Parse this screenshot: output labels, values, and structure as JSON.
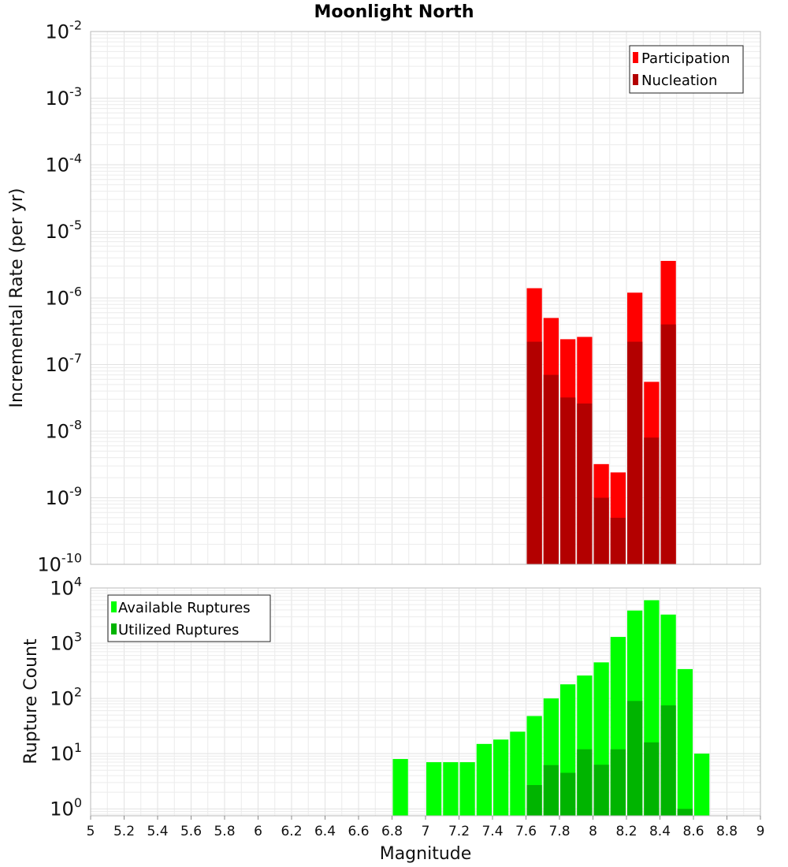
{
  "title": "Moonlight North",
  "colors": {
    "participation": "#ff0000",
    "nucleation": "#b30000",
    "available": "#00ff00",
    "utilized": "#00b400"
  },
  "chart_data": [
    {
      "type": "bar",
      "name": "rate-panel",
      "ylabel": "Incremental Rate (per yr)",
      "xlabel": "",
      "xlim": [
        5,
        9
      ],
      "ylim": [
        1e-10,
        0.01
      ],
      "yscale": "log",
      "y_tick_exponents": [
        -10,
        -9,
        -8,
        -7,
        -6,
        -5,
        -4,
        -3,
        -2
      ],
      "grid": true,
      "legend": {
        "placement": "top-right",
        "entries": [
          "Participation",
          "Nucleation"
        ]
      },
      "bin_width": 0.1,
      "x": [
        7.65,
        7.75,
        7.85,
        7.95,
        8.05,
        8.15,
        8.25,
        8.35,
        8.45
      ],
      "series": [
        {
          "name": "Participation",
          "values": [
            1.4e-06,
            5e-07,
            2.4e-07,
            2.6e-07,
            3.2e-09,
            2.4e-09,
            1.2e-06,
            5.5e-08,
            3.6e-06
          ]
        },
        {
          "name": "Nucleation",
          "values": [
            2.2e-07,
            7e-08,
            3.2e-08,
            2.6e-08,
            1e-09,
            5e-10,
            2.2e-07,
            8e-09,
            4e-07
          ]
        }
      ]
    },
    {
      "type": "bar",
      "name": "count-panel",
      "ylabel": "Rupture Count",
      "xlabel": "Magnitude",
      "xlim": [
        5,
        9
      ],
      "ylim": [
        0.75,
        10000
      ],
      "yscale": "log",
      "y_tick_exponents": [
        0,
        1,
        2,
        3,
        4
      ],
      "x_ticks": [
        "5",
        "5.2",
        "5.4",
        "5.6",
        "5.8",
        "6",
        "6.2",
        "6.4",
        "6.6",
        "6.8",
        "7",
        "7.2",
        "7.4",
        "7.6",
        "7.8",
        "8",
        "8.2",
        "8.4",
        "8.6",
        "8.8",
        "9"
      ],
      "grid": true,
      "legend": {
        "placement": "top-left",
        "entries": [
          "Available Ruptures",
          "Utilized Ruptures"
        ]
      },
      "bin_width": 0.1,
      "x": [
        6.85,
        7.05,
        7.15,
        7.25,
        7.35,
        7.45,
        7.55,
        7.65,
        7.75,
        7.85,
        7.95,
        8.05,
        8.15,
        8.25,
        8.35,
        8.45,
        8.55,
        8.65
      ],
      "series": [
        {
          "name": "Available Ruptures",
          "values": [
            8,
            7,
            7,
            7,
            15,
            18,
            25,
            48,
            100,
            180,
            260,
            450,
            1300,
            3900,
            6000,
            3300,
            340,
            10
          ]
        },
        {
          "name": "Utilized Ruptures",
          "values": [
            null,
            null,
            null,
            null,
            null,
            null,
            null,
            2.7,
            6.2,
            4.5,
            12,
            6.3,
            12,
            90,
            16,
            75,
            1,
            null
          ]
        }
      ]
    }
  ]
}
